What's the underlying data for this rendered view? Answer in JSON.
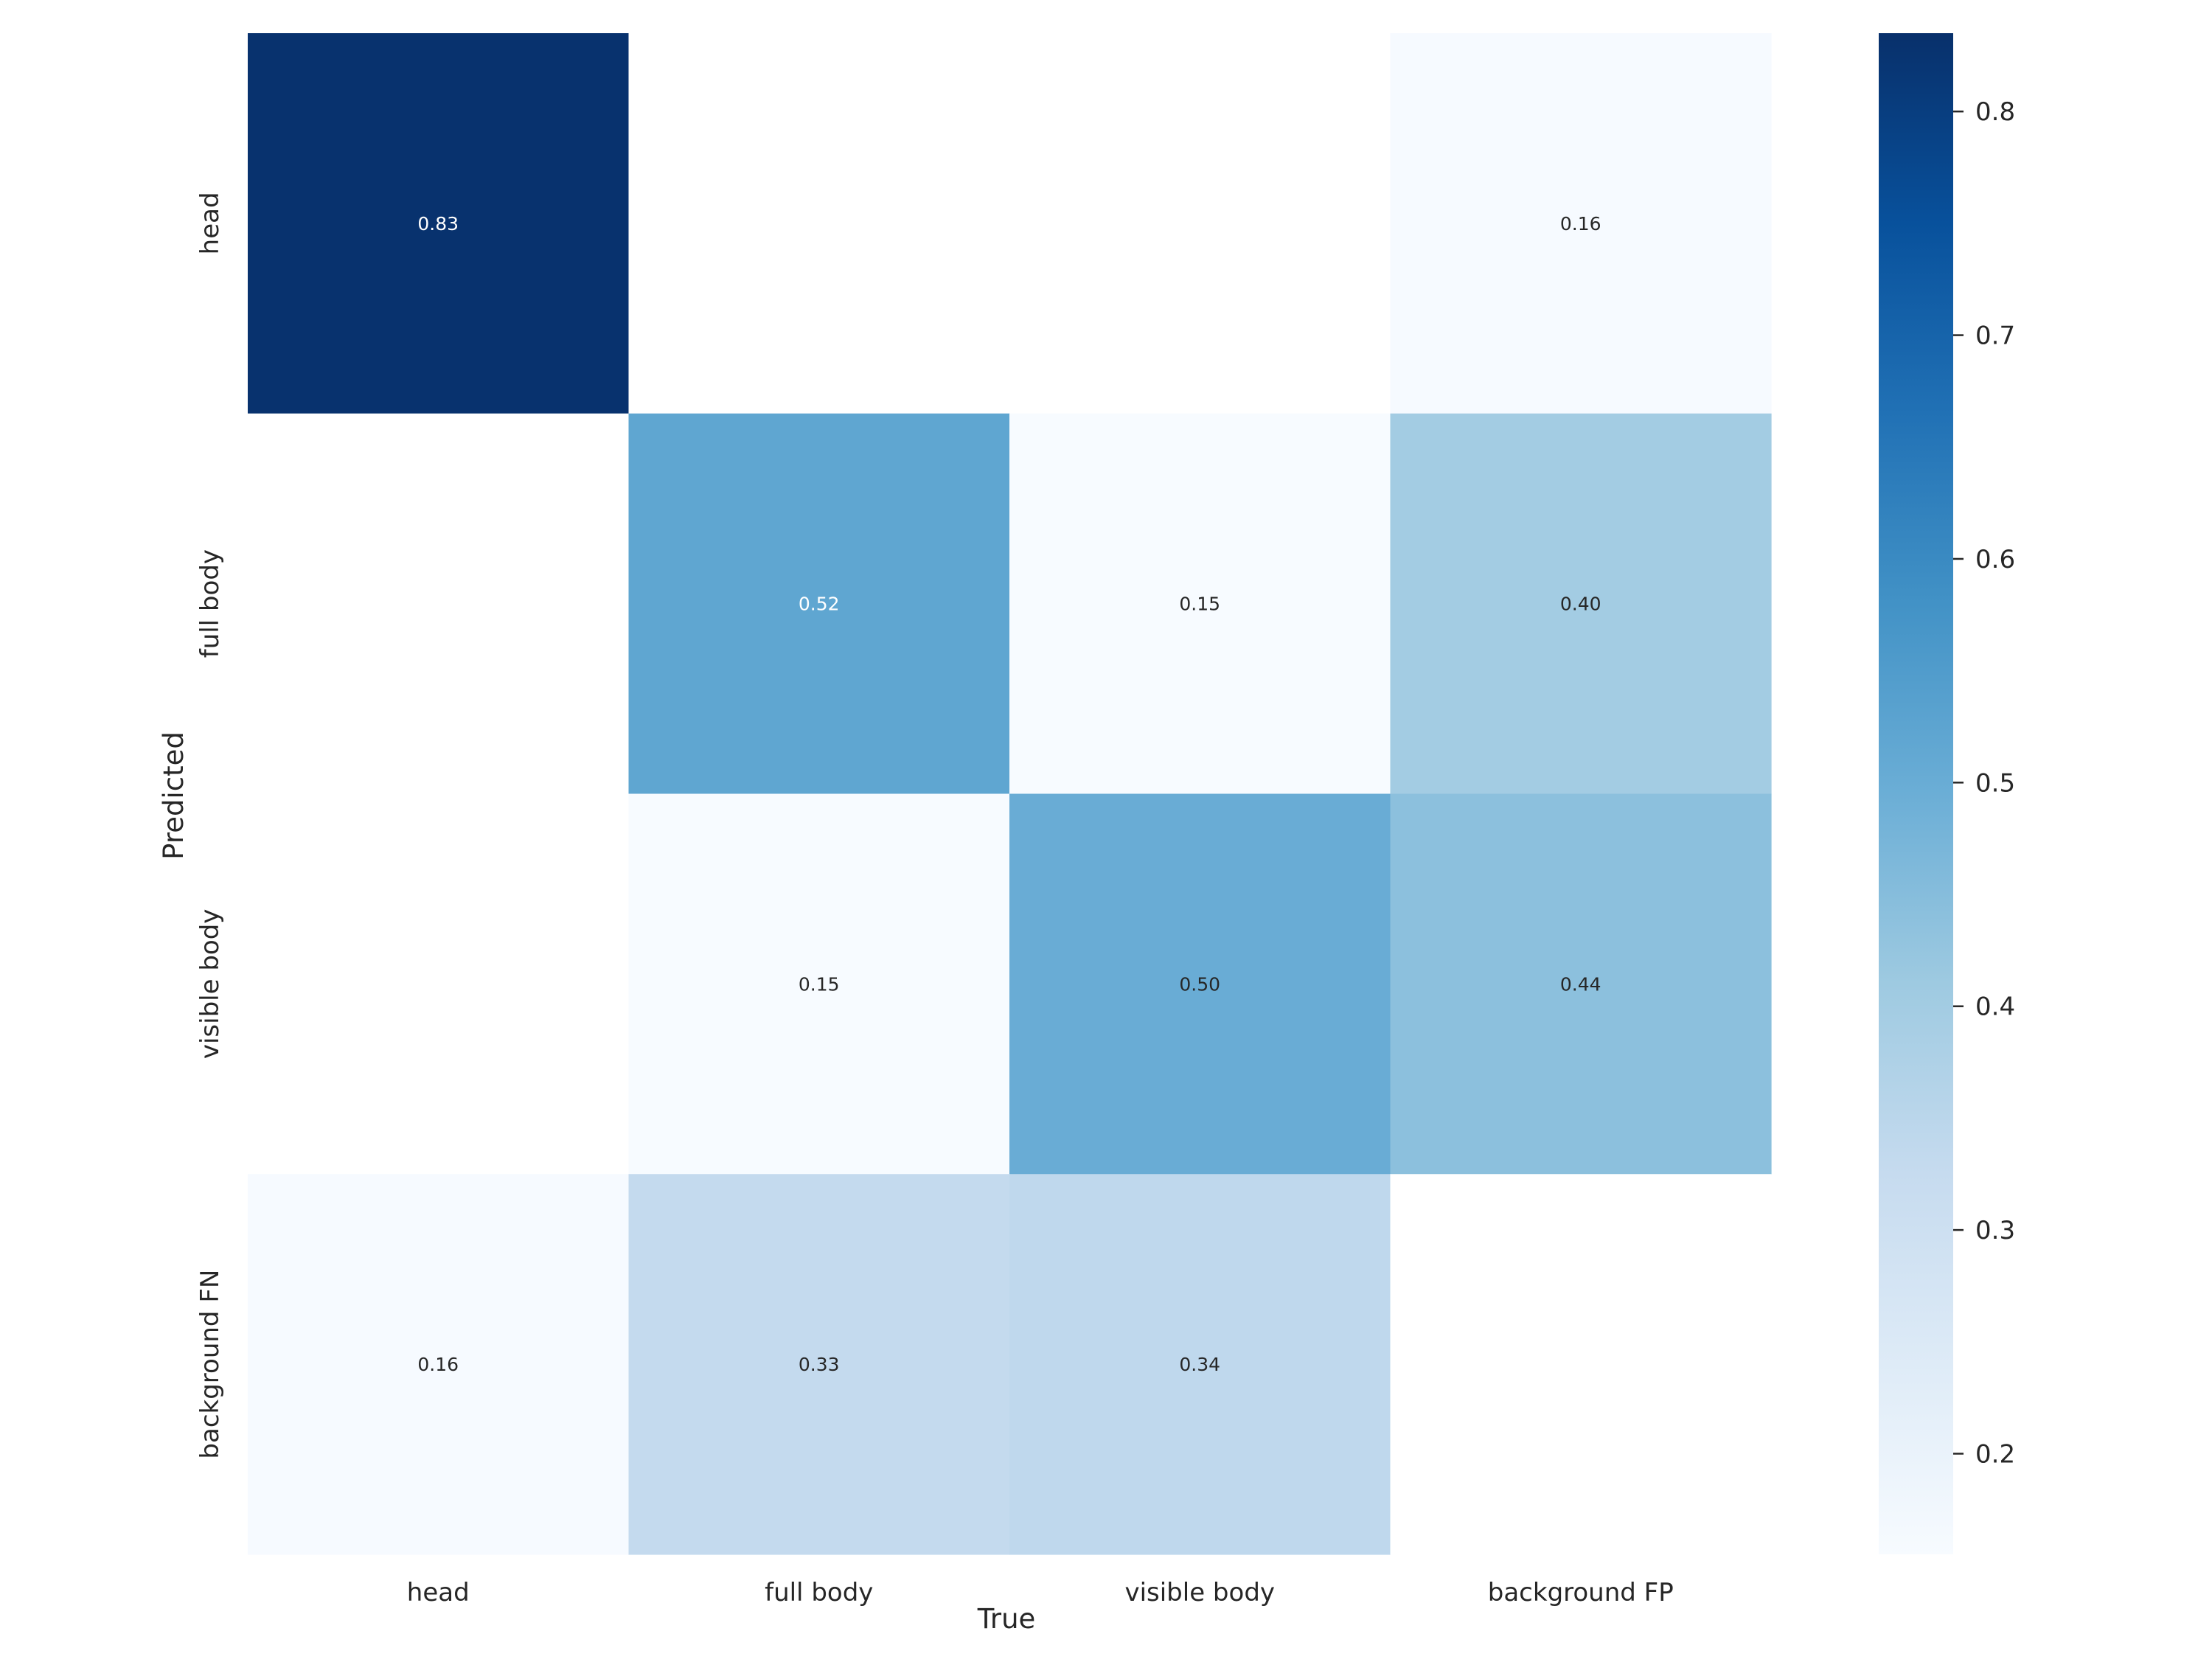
{
  "chart_data": {
    "type": "heatmap",
    "xlabel": "True",
    "ylabel": "Predicted",
    "x_categories": [
      "head",
      "full body",
      "visible body",
      "background FP"
    ],
    "y_categories": [
      "head",
      "full body",
      "visible body",
      "background FN"
    ],
    "values": [
      [
        0.83,
        null,
        null,
        0.16
      ],
      [
        null,
        0.52,
        0.15,
        0.4
      ],
      [
        null,
        0.15,
        0.5,
        0.44
      ],
      [
        0.16,
        0.33,
        0.34,
        null
      ]
    ],
    "value_labels": [
      [
        "0.83",
        "",
        "",
        "0.16"
      ],
      [
        "",
        "0.52",
        "0.15",
        "0.40"
      ],
      [
        "",
        "0.15",
        "0.50",
        "0.44"
      ],
      [
        "0.16",
        "0.33",
        "0.34",
        ""
      ]
    ],
    "colormap": "Blues",
    "colorbar": {
      "range": [
        0.155,
        0.835
      ],
      "ticks": [
        0.2,
        0.3,
        0.4,
        0.5,
        0.6,
        0.7,
        0.8
      ],
      "tick_labels": [
        "0.2",
        "0.3",
        "0.4",
        "0.5",
        "0.6",
        "0.7",
        "0.8"
      ]
    },
    "grid": false,
    "legend": "colorbar-right"
  }
}
